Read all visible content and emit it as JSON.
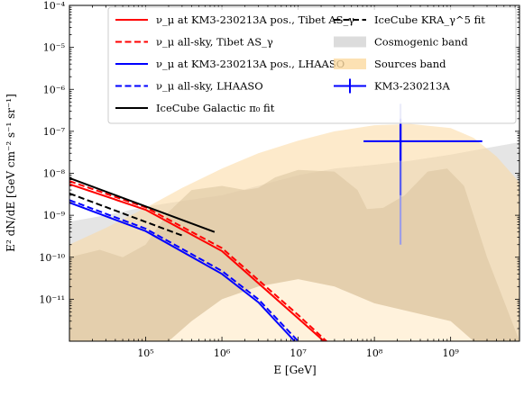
{
  "chart_data": {
    "type": "line",
    "xlabel": "E [GeV]",
    "ylabel": "E² dN/dE [GeV cm⁻² s⁻¹ sr⁻¹]",
    "xscale": "log",
    "yscale": "log",
    "xlim": [
      10000,
      8000000000
    ],
    "ylim": [
      1e-12,
      0.0001
    ],
    "x_tick_labels": [
      {
        "value": 100000,
        "label": "10⁵"
      },
      {
        "value": 1000000,
        "label": "10⁶"
      },
      {
        "value": 10000000,
        "label": "10⁷"
      },
      {
        "value": 100000000,
        "label": "10⁸"
      },
      {
        "value": 1000000000,
        "label": "10⁹"
      }
    ],
    "y_tick_labels": [
      {
        "value": 1e-11,
        "label": "10⁻¹¹"
      },
      {
        "value": 1e-10,
        "label": "10⁻¹⁰"
      },
      {
        "value": 1e-09,
        "label": "10⁻⁹"
      },
      {
        "value": 1e-08,
        "label": "10⁻⁸"
      },
      {
        "value": 1e-07,
        "label": "10⁻⁷"
      },
      {
        "value": 1e-06,
        "label": "10⁻⁶"
      },
      {
        "value": 1e-05,
        "label": "10⁻⁵"
      },
      {
        "value": 0.0001,
        "label": "10⁻⁴"
      }
    ],
    "grid": false,
    "legend_placement": "top",
    "series": [
      {
        "name": "ν_μ at KM3-230213A pos., Tibet AS_γ",
        "color": "#ff0000",
        "dash": "solid",
        "points": [
          [
            10000,
            5.5e-09
          ],
          [
            100000,
            1.35e-09
          ],
          [
            1000000,
            1.4e-10
          ],
          [
            10000000,
            3.5e-12
          ],
          [
            25000000,
            8e-13
          ]
        ]
      },
      {
        "name": "ν_μ all-sky, Tibet AS_γ",
        "color": "#ff0000",
        "dash": "dashed",
        "points": [
          [
            10000,
            6.5e-09
          ],
          [
            100000,
            1.55e-09
          ],
          [
            1000000,
            1.65e-10
          ],
          [
            10000000,
            4.2e-12
          ],
          [
            25000000,
            9e-13
          ]
        ]
      },
      {
        "name": "ν_μ at KM3-230213A pos., LHAASO",
        "color": "#0000ff",
        "dash": "solid",
        "points": [
          [
            10000,
            2e-09
          ],
          [
            100000,
            4.2e-10
          ],
          [
            1000000,
            4e-11
          ],
          [
            3000000,
            8.5e-12
          ],
          [
            9000000,
            1e-12
          ]
        ]
      },
      {
        "name": "ν_μ all-sky, LHAASO",
        "color": "#0000ff",
        "dash": "dashed",
        "points": [
          [
            10000,
            2.3e-09
          ],
          [
            100000,
            4.8e-10
          ],
          [
            1000000,
            4.7e-11
          ],
          [
            3000000,
            1e-11
          ],
          [
            10000000,
            1e-12
          ]
        ]
      },
      {
        "name": "IceCube Galactic π₀ fit",
        "color": "#000000",
        "dash": "solid",
        "points": [
          [
            10000,
            7.7e-09
          ],
          [
            800000,
            4e-10
          ]
        ]
      },
      {
        "name": "IceCube KRA_γ^5 fit",
        "color": "#000000",
        "dash": "dashed",
        "points": [
          [
            10000,
            3.3e-09
          ],
          [
            300000,
            3.3e-10
          ]
        ]
      }
    ],
    "bands": [
      {
        "name": "Cosmogenic band",
        "color": "#d3d3d3",
        "opacity": 0.6,
        "upper": [
          [
            10000,
            7e-10
          ],
          [
            30000,
            1e-09
          ],
          [
            100000,
            1.6e-09
          ],
          [
            300000,
            2.2e-09
          ],
          [
            1000000,
            3e-09
          ],
          [
            3000000,
            5e-09
          ],
          [
            10000000,
            9e-09
          ],
          [
            30000000,
            1.3e-08
          ],
          [
            100000000,
            1.6e-08
          ],
          [
            300000000,
            2e-08
          ],
          [
            1000000000,
            2.8e-08
          ],
          [
            3000000000,
            4e-08
          ],
          [
            8000000000,
            5.5e-08
          ]
        ],
        "lower": [
          [
            10000,
            1e-12
          ],
          [
            8000000000,
            1e-12
          ]
        ]
      },
      {
        "name": "Sources band",
        "color": "#fbd9a0",
        "opacity": 0.55,
        "upper": [
          [
            10000,
            2e-10
          ],
          [
            30000,
            5e-10
          ],
          [
            100000,
            1.5e-09
          ],
          [
            300000,
            4.5e-09
          ],
          [
            1000000,
            1.3e-08
          ],
          [
            3000000,
            3e-08
          ],
          [
            10000000,
            6e-08
          ],
          [
            30000000,
            1e-07
          ],
          [
            100000000,
            1.4e-07
          ],
          [
            300000000,
            1.5e-07
          ],
          [
            1000000000,
            1.2e-07
          ],
          [
            2000000000,
            7e-08
          ],
          [
            4000000000,
            2.5e-08
          ],
          [
            8000000000,
            6e-09
          ]
        ],
        "lower": [
          [
            10000,
            1e-12
          ],
          [
            8000000000,
            1e-12
          ]
        ]
      },
      {
        "name": "",
        "color": "#d9c39f",
        "opacity": 0.55,
        "upper": [
          [
            10000,
            1e-10
          ],
          [
            25000,
            1.5e-10
          ],
          [
            50000,
            1e-10
          ],
          [
            100000,
            2e-10
          ],
          [
            200000,
            1.2e-09
          ],
          [
            400000,
            4e-09
          ],
          [
            1000000,
            5e-09
          ],
          [
            2000000,
            4e-09
          ],
          [
            3000000,
            4.5e-09
          ],
          [
            5000000,
            8e-09
          ],
          [
            10000000,
            1.2e-08
          ],
          [
            30000000,
            1.1e-08
          ],
          [
            60000000,
            4e-09
          ],
          [
            80000000,
            1.4e-09
          ],
          [
            130000000,
            1.5e-09
          ],
          [
            250000000,
            3e-09
          ],
          [
            500000000,
            1.1e-08
          ],
          [
            900000000,
            1.3e-08
          ],
          [
            1500000000,
            5e-09
          ],
          [
            3000000000,
            1e-10
          ],
          [
            8000000000,
            1e-12
          ]
        ],
        "lower": [
          [
            10000,
            1e-12
          ],
          [
            8000000000,
            1e-12
          ]
        ]
      },
      {
        "name": "",
        "color": "#fff2dc",
        "opacity": 1,
        "upper": [
          [
            200000,
            1e-12
          ],
          [
            400000,
            3e-12
          ],
          [
            1000000,
            1e-11
          ],
          [
            3000000,
            2e-11
          ],
          [
            10000000,
            3e-11
          ],
          [
            30000000,
            2e-11
          ],
          [
            100000000,
            8e-12
          ],
          [
            300000000,
            5e-12
          ],
          [
            1000000000,
            3e-12
          ],
          [
            2000000000,
            1e-12
          ]
        ],
        "lower": [
          [
            200000,
            1e-12
          ],
          [
            2000000000,
            1e-12
          ]
        ]
      }
    ],
    "data_point": {
      "name": "KM3-230213A",
      "color": "#0000ff",
      "x": 220000000,
      "y": 5.8e-08,
      "x_range": [
        72000000,
        2600000000
      ],
      "y_inner": [
        2e-08,
        1.5e-07
      ],
      "y_mid": [
        3e-09,
        2e-07
      ],
      "y_outer": [
        2e-10,
        4.5e-07
      ]
    },
    "legend_left": [
      {
        "label": "ν_μ at KM3-230213A pos., Tibet AS_γ",
        "kind": "line",
        "color": "#ff0000",
        "dash": "solid"
      },
      {
        "label": "ν_μ all-sky, Tibet AS_γ",
        "kind": "line",
        "color": "#ff0000",
        "dash": "dashed"
      },
      {
        "label": "ν_μ at KM3-230213A pos., LHAASO",
        "kind": "line",
        "color": "#0000ff",
        "dash": "solid"
      },
      {
        "label": "ν_μ all-sky, LHAASO",
        "kind": "line",
        "color": "#0000ff",
        "dash": "dashed"
      },
      {
        "label": "IceCube Galactic π₀ fit",
        "kind": "line",
        "color": "#000000",
        "dash": "solid"
      }
    ],
    "legend_right": [
      {
        "label": "IceCube KRA_γ^5 fit",
        "kind": "line",
        "color": "#000000",
        "dash": "dashed"
      },
      {
        "label": "Cosmogenic band",
        "kind": "patch",
        "color": "#d3d3d3"
      },
      {
        "label": "Sources band",
        "kind": "patch",
        "color": "#fbd9a0"
      },
      {
        "label": "KM3-230213A",
        "kind": "errorbar",
        "color": "#0000ff"
      }
    ]
  }
}
